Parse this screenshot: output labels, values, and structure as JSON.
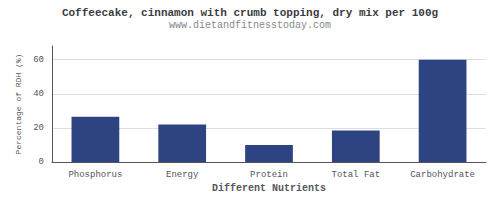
{
  "chart_data": {
    "type": "bar",
    "title": "Coffeecake, cinnamon with crumb topping, dry mix per 100g",
    "subtitle": "www.dietandfitnesstoday.com",
    "xlabel": "Different Nutrients",
    "ylabel": "Percentage of RDH (%)",
    "categories": [
      "Phosphorus",
      "Energy",
      "Protein",
      "Total Fat",
      "Carbohydrate"
    ],
    "values": [
      26.5,
      22,
      10,
      18.5,
      60
    ],
    "color": "#2e4482",
    "ylim": [
      0,
      68
    ],
    "yticks": [
      0,
      20,
      40,
      60
    ],
    "grid": true
  }
}
